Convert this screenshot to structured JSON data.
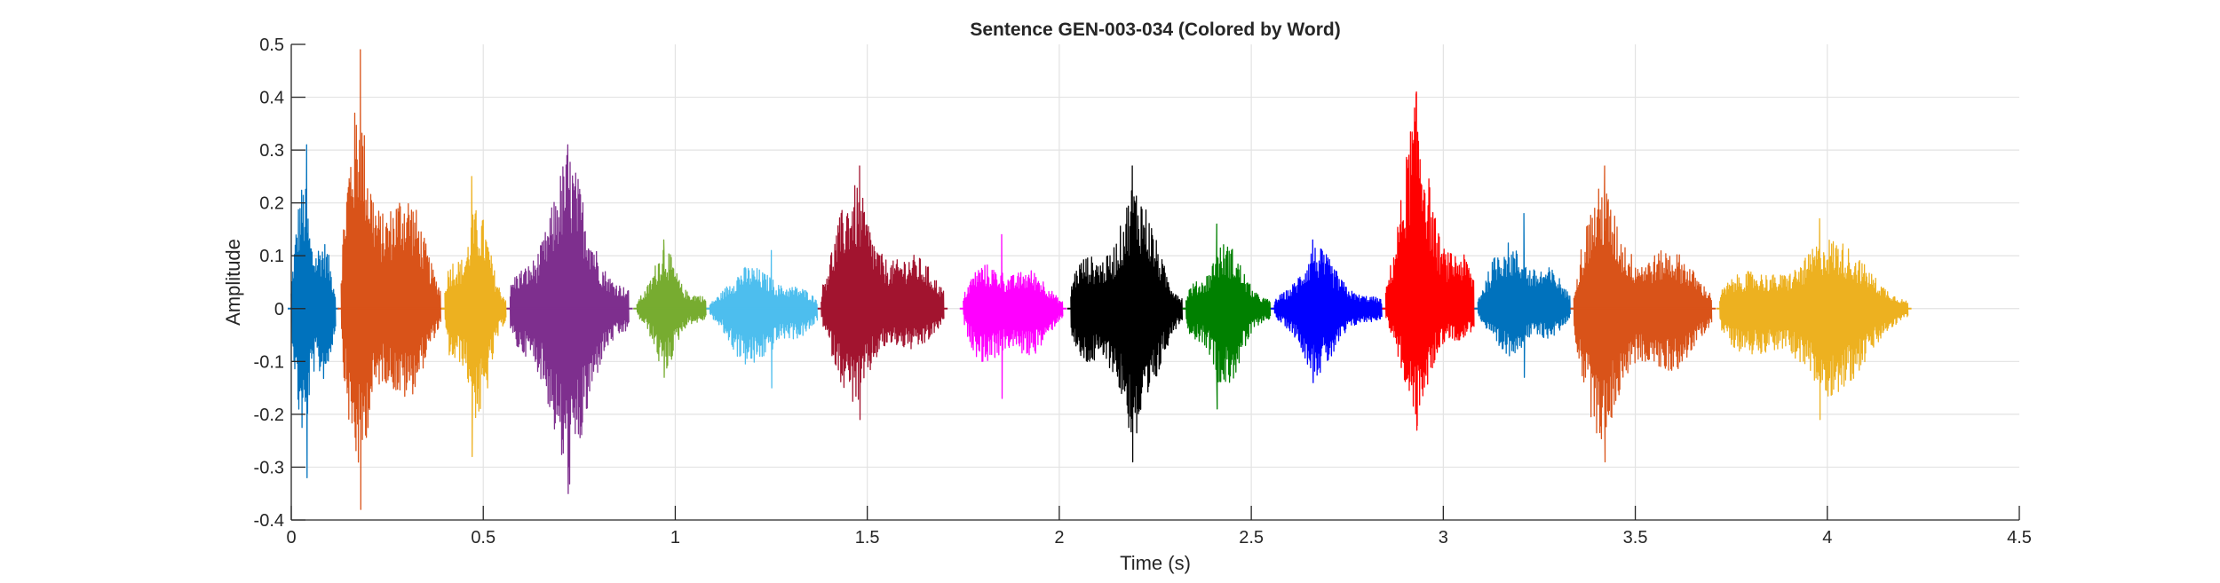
{
  "chart_data": {
    "type": "line",
    "title": "Sentence GEN-003-034 (Colored by Word)",
    "xlabel": "Time (s)",
    "ylabel": "Amplitude",
    "xlim": [
      0,
      4.5
    ],
    "ylim": [
      -0.4,
      0.5
    ],
    "xticks": [
      0,
      0.5,
      1,
      1.5,
      2,
      2.5,
      3,
      3.5,
      4,
      4.5
    ],
    "xtick_labels": [
      "0",
      "0.5",
      "1",
      "1.5",
      "2",
      "2.5",
      "3",
      "3.5",
      "4",
      "4.5"
    ],
    "yticks": [
      -0.4,
      -0.3,
      -0.2,
      -0.1,
      0,
      0.1,
      0.2,
      0.3,
      0.4,
      0.5
    ],
    "ytick_labels": [
      "-0.4",
      "-0.3",
      "-0.2",
      "-0.1",
      "0",
      "0.1",
      "0.2",
      "0.3",
      "0.4",
      "0.5"
    ],
    "grid": true,
    "legend": "none",
    "series": [
      {
        "start": 0.0,
        "end": 0.115,
        "peak_max": 0.31,
        "peak_min": -0.32,
        "peak_at": 0.04,
        "color": "#0072BD"
      },
      {
        "start": 0.13,
        "end": 0.39,
        "peak_max": 0.49,
        "peak_min": -0.38,
        "peak_at": 0.18,
        "color": "#D95319"
      },
      {
        "start": 0.4,
        "end": 0.56,
        "peak_max": 0.25,
        "peak_min": -0.28,
        "peak_at": 0.47,
        "color": "#EDB120"
      },
      {
        "start": 0.57,
        "end": 0.88,
        "peak_max": 0.31,
        "peak_min": -0.35,
        "peak_at": 0.72,
        "color": "#7E2F8E"
      },
      {
        "start": 0.9,
        "end": 1.08,
        "peak_max": 0.13,
        "peak_min": -0.13,
        "peak_at": 0.97,
        "color": "#77AC30"
      },
      {
        "start": 1.09,
        "end": 1.37,
        "peak_max": 0.11,
        "peak_min": -0.15,
        "peak_at": 1.25,
        "color": "#4DBEEE"
      },
      {
        "start": 1.38,
        "end": 1.7,
        "peak_max": 0.27,
        "peak_min": -0.21,
        "peak_at": 1.48,
        "color": "#A2142F"
      },
      {
        "start": 1.75,
        "end": 2.01,
        "peak_max": 0.14,
        "peak_min": -0.17,
        "peak_at": 1.85,
        "color": "#FF00FF"
      },
      {
        "start": 2.03,
        "end": 2.32,
        "peak_max": 0.27,
        "peak_min": -0.29,
        "peak_at": 2.19,
        "color": "#000000"
      },
      {
        "start": 2.33,
        "end": 2.55,
        "peak_max": 0.16,
        "peak_min": -0.19,
        "peak_at": 2.41,
        "color": "#008000"
      },
      {
        "start": 2.56,
        "end": 2.84,
        "peak_max": 0.13,
        "peak_min": -0.14,
        "peak_at": 2.66,
        "color": "#0000FF"
      },
      {
        "start": 2.85,
        "end": 3.08,
        "peak_max": 0.41,
        "peak_min": -0.23,
        "peak_at": 2.93,
        "color": "#FF0000"
      },
      {
        "start": 3.09,
        "end": 3.33,
        "peak_max": 0.18,
        "peak_min": -0.13,
        "peak_at": 3.21,
        "color": "#0072BD"
      },
      {
        "start": 3.34,
        "end": 3.7,
        "peak_max": 0.27,
        "peak_min": -0.29,
        "peak_at": 3.42,
        "color": "#D95319"
      },
      {
        "start": 3.72,
        "end": 4.21,
        "peak_max": 0.17,
        "peak_min": -0.21,
        "peak_at": 3.98,
        "color": "#EDB120"
      }
    ]
  }
}
